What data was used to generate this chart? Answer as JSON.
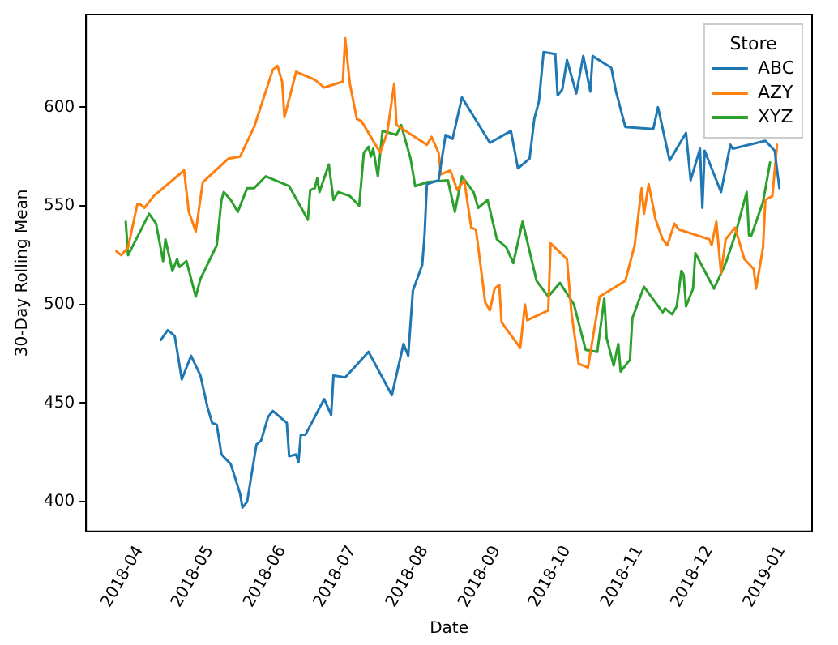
{
  "chart_data": {
    "type": "line",
    "xlabel": "Date",
    "ylabel": "30-Day Rolling Mean",
    "legend_title": "Store",
    "legend": "top right",
    "grid": false,
    "marker": "none",
    "line_style": "solid",
    "xlim": [
      "2018-03-09",
      "2019-01-14"
    ],
    "xticks": [
      "2018-04",
      "2018-05",
      "2018-06",
      "2018-07",
      "2018-08",
      "2018-09",
      "2018-10",
      "2018-11",
      "2018-12",
      "2019-01"
    ],
    "ylim": [
      385,
      647
    ],
    "yticks": [
      400,
      450,
      500,
      550,
      600
    ],
    "series": [
      {
        "name": "ABC",
        "color": "#1f77b4",
        "x": [
          "2018-04-10",
          "2018-04-13",
          "2018-04-16",
          "2018-04-19",
          "2018-04-23",
          "2018-04-27",
          "2018-04-30",
          "2018-05-02",
          "2018-05-04",
          "2018-05-06",
          "2018-05-10",
          "2018-05-14",
          "2018-05-15",
          "2018-05-17",
          "2018-05-21",
          "2018-05-23",
          "2018-05-26",
          "2018-05-28",
          "2018-06-03",
          "2018-06-04",
          "2018-06-07",
          "2018-06-08",
          "2018-06-09",
          "2018-06-11",
          "2018-06-19",
          "2018-06-22",
          "2018-06-23",
          "2018-06-28",
          "2018-07-08",
          "2018-07-18",
          "2018-07-23",
          "2018-07-25",
          "2018-07-27",
          "2018-07-31",
          "2018-08-01",
          "2018-08-02",
          "2018-08-07",
          "2018-08-10",
          "2018-08-13",
          "2018-08-17",
          "2018-08-29",
          "2018-09-07",
          "2018-09-10",
          "2018-09-15",
          "2018-09-17",
          "2018-09-19",
          "2018-09-21",
          "2018-09-26",
          "2018-09-27",
          "2018-09-29",
          "2018-10-01",
          "2018-10-05",
          "2018-10-08",
          "2018-10-11",
          "2018-10-12",
          "2018-10-20",
          "2018-10-22",
          "2018-10-26",
          "2018-11-07",
          "2018-11-09",
          "2018-11-14",
          "2018-11-21",
          "2018-11-23",
          "2018-11-27",
          "2018-11-28",
          "2018-11-29",
          "2018-12-06",
          "2018-12-10",
          "2018-12-11",
          "2018-12-25",
          "2018-12-29",
          "2018-12-31"
        ],
        "values": [
          482,
          487,
          484,
          462,
          474,
          464,
          448,
          440,
          439,
          424,
          419,
          404,
          397,
          400,
          429,
          431,
          443,
          446,
          440,
          423,
          424,
          420,
          434,
          434,
          452,
          444,
          464,
          463,
          476,
          454,
          480,
          474,
          507,
          520,
          535,
          561,
          563,
          586,
          584,
          605,
          582,
          588,
          569,
          574,
          594,
          603,
          628,
          627,
          606,
          609,
          624,
          607,
          626,
          608,
          626,
          620,
          608,
          590,
          589,
          600,
          573,
          587,
          563,
          579,
          549,
          578,
          557,
          581,
          579,
          583,
          578,
          559
        ]
      },
      {
        "name": "AZY",
        "color": "#ff7f0e",
        "x": [
          "2018-03-22",
          "2018-03-24",
          "2018-03-27",
          "2018-03-31",
          "2018-04-01",
          "2018-04-03",
          "2018-04-07",
          "2018-04-20",
          "2018-04-22",
          "2018-04-25",
          "2018-04-28",
          "2018-05-09",
          "2018-05-14",
          "2018-05-20",
          "2018-05-28",
          "2018-05-30",
          "2018-06-01",
          "2018-06-02",
          "2018-06-07",
          "2018-06-15",
          "2018-06-19",
          "2018-06-27",
          "2018-06-28",
          "2018-06-30",
          "2018-07-03",
          "2018-07-05",
          "2018-07-11",
          "2018-07-13",
          "2018-07-16",
          "2018-07-19",
          "2018-07-20",
          "2018-08-02",
          "2018-08-04",
          "2018-08-07",
          "2018-08-08",
          "2018-08-12",
          "2018-08-15",
          "2018-08-18",
          "2018-08-21",
          "2018-08-23",
          "2018-08-24",
          "2018-08-27",
          "2018-08-29",
          "2018-08-31",
          "2018-09-02",
          "2018-09-03",
          "2018-09-11",
          "2018-09-13",
          "2018-09-14",
          "2018-09-23",
          "2018-09-24",
          "2018-10-01",
          "2018-10-03",
          "2018-10-06",
          "2018-10-10",
          "2018-10-15",
          "2018-10-26",
          "2018-10-30",
          "2018-11-02",
          "2018-11-03",
          "2018-11-05",
          "2018-11-08",
          "2018-11-11",
          "2018-11-13",
          "2018-11-16",
          "2018-11-18",
          "2018-12-01",
          "2018-12-02",
          "2018-12-04",
          "2018-12-06",
          "2018-12-08",
          "2018-12-12",
          "2018-12-16",
          "2018-12-20",
          "2018-12-21",
          "2018-12-24",
          "2018-12-25",
          "2018-12-28",
          "2018-12-30"
        ],
        "values": [
          527,
          525,
          529,
          551,
          551,
          549,
          555,
          568,
          547,
          537,
          562,
          574,
          575,
          590,
          619,
          621,
          613,
          595,
          618,
          614,
          610,
          613,
          635,
          612,
          594,
          593,
          581,
          577,
          587,
          612,
          591,
          581,
          585,
          577,
          566,
          568,
          558,
          563,
          539,
          538,
          529,
          501,
          497,
          508,
          510,
          491,
          478,
          500,
          492,
          497,
          531,
          523,
          495,
          470,
          468,
          504,
          512,
          530,
          559,
          546,
          561,
          543,
          533,
          530,
          541,
          538,
          533,
          530,
          542,
          516,
          533,
          539,
          523,
          518,
          508,
          529,
          553,
          555,
          581
        ]
      },
      {
        "name": "XYZ",
        "color": "#2ca02c",
        "x": [
          "2018-03-26",
          "2018-03-27",
          "2018-04-05",
          "2018-04-08",
          "2018-04-11",
          "2018-04-12",
          "2018-04-15",
          "2018-04-17",
          "2018-04-18",
          "2018-04-21",
          "2018-04-25",
          "2018-04-27",
          "2018-05-04",
          "2018-05-06",
          "2018-05-07",
          "2018-05-10",
          "2018-05-13",
          "2018-05-17",
          "2018-05-20",
          "2018-05-25",
          "2018-06-04",
          "2018-06-12",
          "2018-06-13",
          "2018-06-15",
          "2018-06-16",
          "2018-06-17",
          "2018-06-21",
          "2018-06-23",
          "2018-06-25",
          "2018-06-30",
          "2018-07-04",
          "2018-07-06",
          "2018-07-08",
          "2018-07-09",
          "2018-07-10",
          "2018-07-12",
          "2018-07-14",
          "2018-07-20",
          "2018-07-22",
          "2018-07-26",
          "2018-07-28",
          "2018-08-02",
          "2018-08-11",
          "2018-08-14",
          "2018-08-17",
          "2018-08-22",
          "2018-08-24",
          "2018-08-28",
          "2018-09-01",
          "2018-09-05",
          "2018-09-08",
          "2018-09-12",
          "2018-09-18",
          "2018-09-23",
          "2018-09-28",
          "2018-10-04",
          "2018-10-09",
          "2018-10-14",
          "2018-10-17",
          "2018-10-18",
          "2018-10-21",
          "2018-10-23",
          "2018-10-24",
          "2018-10-28",
          "2018-10-29",
          "2018-11-03",
          "2018-11-11",
          "2018-11-12",
          "2018-11-15",
          "2018-11-17",
          "2018-11-19",
          "2018-11-20",
          "2018-11-21",
          "2018-11-24",
          "2018-11-25",
          "2018-12-03",
          "2018-12-08",
          "2018-12-12",
          "2018-12-17",
          "2018-12-18",
          "2018-12-19",
          "2018-12-24",
          "2018-12-27"
        ],
        "values": [
          542,
          525,
          546,
          541,
          522,
          533,
          517,
          523,
          519,
          522,
          504,
          513,
          530,
          553,
          557,
          553,
          547,
          559,
          559,
          565,
          560,
          543,
          558,
          559,
          564,
          557,
          571,
          553,
          557,
          555,
          550,
          577,
          580,
          575,
          579,
          565,
          588,
          586,
          591,
          574,
          560,
          562,
          563,
          547,
          565,
          557,
          549,
          553,
          533,
          529,
          521,
          542,
          512,
          504,
          511,
          500,
          477,
          476,
          503,
          483,
          469,
          480,
          466,
          472,
          493,
          509,
          496,
          498,
          495,
          499,
          517,
          515,
          499,
          508,
          526,
          508,
          521,
          535,
          557,
          535,
          535,
          552,
          572
        ]
      }
    ]
  }
}
